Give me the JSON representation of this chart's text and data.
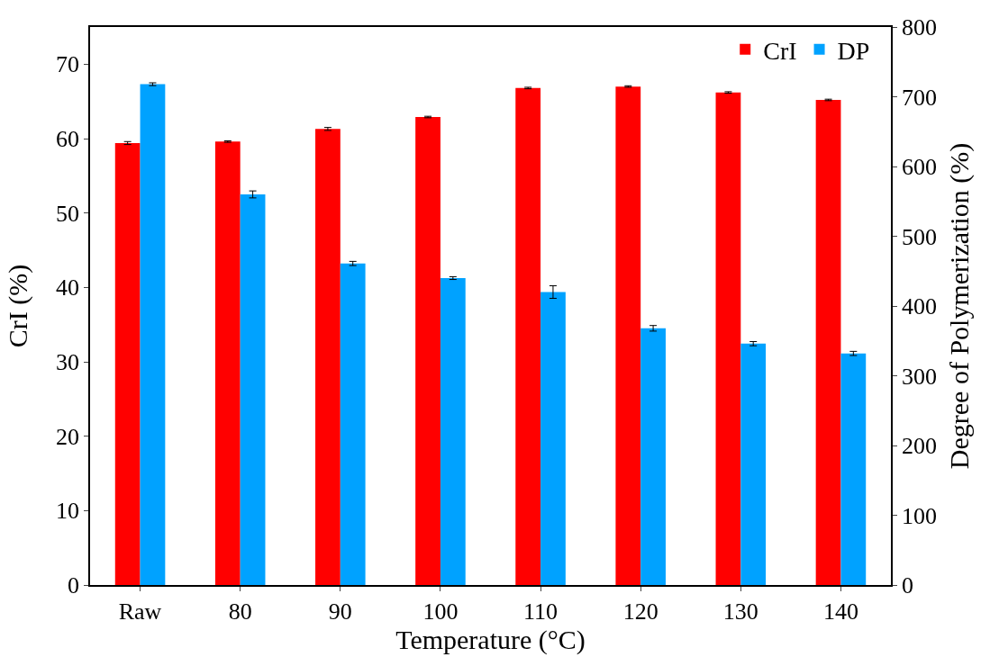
{
  "chart_data": {
    "type": "bar",
    "xlabel": "Temperature (°C)",
    "ylabel": "CrI (%)",
    "y2label": "Degree of Polymerization (%)",
    "categories": [
      "Raw",
      "80",
      "90",
      "100",
      "110",
      "120",
      "130",
      "140"
    ],
    "series": [
      {
        "name": "CrI",
        "color": "#ff0000",
        "values": [
          59.4,
          59.6,
          61.3,
          62.9,
          66.8,
          67.0,
          66.2,
          65.2
        ],
        "errors": [
          0.2,
          0.1,
          0.2,
          0.1,
          0.1,
          0.1,
          0.1,
          0.1
        ]
      },
      {
        "name": "DP",
        "color": "#00a2ff",
        "axis": "y2",
        "values": [
          718,
          560,
          461,
          440,
          420,
          368,
          346,
          332
        ],
        "errors": [
          2,
          5,
          3,
          2,
          9,
          4,
          3,
          3
        ]
      }
    ],
    "ylim": [
      0,
      75
    ],
    "yticks": [
      0,
      10,
      20,
      30,
      40,
      50,
      60,
      70
    ],
    "y2lim": [
      0,
      800
    ],
    "y2ticks": [
      0,
      100,
      200,
      300,
      400,
      500,
      600,
      700,
      800
    ],
    "grid": false,
    "legend": "top right"
  }
}
